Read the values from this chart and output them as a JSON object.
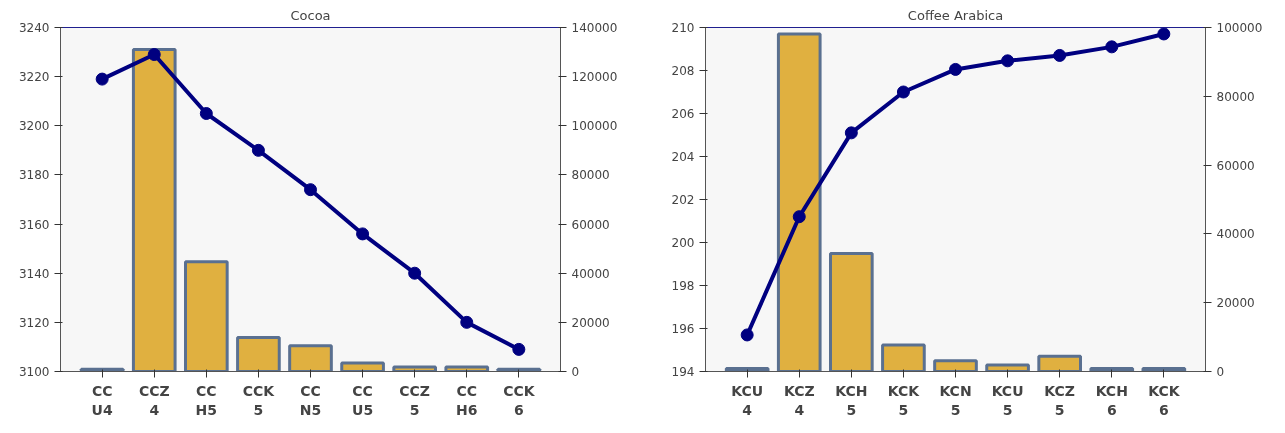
{
  "chart_data": [
    {
      "type": "bar",
      "title": "Cocoa",
      "categories": [
        "CC\nU4",
        "CCZ\n4",
        "CC\nH5",
        "CCK\n5",
        "CC\nN5",
        "CC\nU5",
        "CCZ\n5",
        "CC\nH6",
        "CCK\n6"
      ],
      "series": [
        {
          "axis": "y2",
          "color": "#e0b040",
          "values": [
            900,
            131000,
            44700,
            13800,
            10500,
            3500,
            1800,
            1800,
            900
          ]
        },
        {
          "type": "line",
          "color": "#000080",
          "values": [
            3219,
            3229,
            3205,
            3190,
            3174,
            3156,
            3140,
            3120,
            3109
          ]
        }
      ],
      "ylim": [
        3100,
        3240
      ],
      "yticks": [
        3100,
        3120,
        3140,
        3160,
        3180,
        3200,
        3220,
        3240
      ],
      "y2lim": [
        0,
        140000
      ],
      "y2ticks": [
        0,
        20000,
        40000,
        60000,
        80000,
        100000,
        120000,
        140000
      ],
      "marker": "circle",
      "grid": false
    },
    {
      "type": "bar",
      "title": "Coffee Arabica",
      "categories": [
        "KCU\n4",
        "KCZ\n4",
        "KCH\n5",
        "KCK\n5",
        "KCN\n5",
        "KCU\n5",
        "KCZ\n5",
        "KCH\n6",
        "KCK\n6"
      ],
      "series": [
        {
          "axis": "y2",
          "color": "#e0b040",
          "values": [
            900,
            98100,
            34300,
            7700,
            3100,
            1900,
            4400,
            900,
            900
          ]
        },
        {
          "type": "line",
          "color": "#000080",
          "values": [
            195.7,
            201.2,
            205.1,
            207.0,
            208.05,
            208.45,
            208.7,
            209.1,
            209.7
          ]
        }
      ],
      "ylim": [
        194,
        210
      ],
      "yticks": [
        194,
        196,
        198,
        200,
        202,
        204,
        206,
        208,
        210
      ],
      "y2lim": [
        0,
        100000
      ],
      "y2ticks": [
        0,
        20000,
        40000,
        60000,
        80000,
        100000
      ],
      "marker": "circle",
      "grid": false
    }
  ]
}
